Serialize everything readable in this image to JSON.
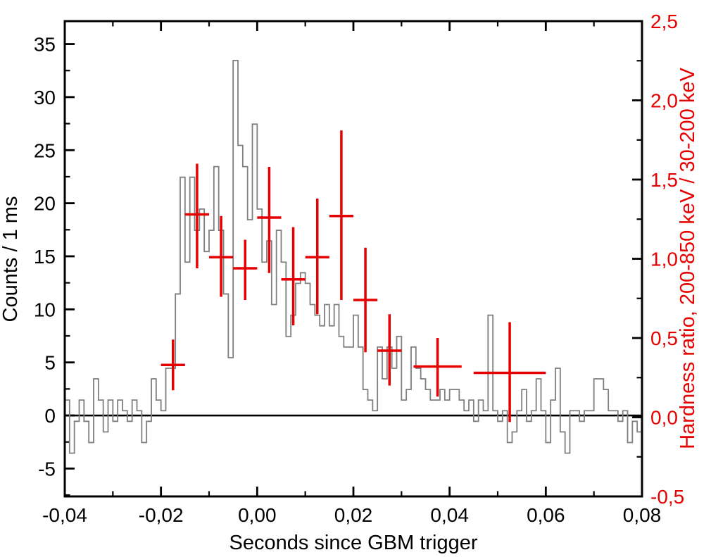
{
  "colors": {
    "background": "#ffffff",
    "histogram_line": "#7f7f7f",
    "hardness_red": "#e60000",
    "axis_black": "#000000"
  },
  "chart_data": {
    "type": "line",
    "title": "",
    "xlabel": "Seconds since GBM trigger",
    "ylabel_left": "Counts / 1 ms",
    "ylabel_right": "Hardness ratio, 200-850 keV / 30-200 keV",
    "x_range": [
      -0.04,
      0.08
    ],
    "y_left_range": [
      -7.63,
      37.16
    ],
    "y_right_range": [
      -0.5,
      2.5
    ],
    "grid": false,
    "legend": "none",
    "zero_line_counts": 0,
    "x_ticks": {
      "values": [
        -0.04,
        -0.02,
        0.0,
        0.02,
        0.04,
        0.06,
        0.08
      ],
      "labels": [
        "-0,04",
        "-0,02",
        "0,00",
        "0,02",
        "0,04",
        "0,06",
        "0,08"
      ],
      "minor_step": 0.01
    },
    "y_left_ticks": {
      "values": [
        -5,
        0,
        5,
        10,
        15,
        20,
        25,
        30,
        35
      ],
      "labels": [
        "-5",
        "0",
        "5",
        "10",
        "15",
        "20",
        "25",
        "30",
        "35"
      ],
      "minor_step": 2.5
    },
    "y_right_ticks": {
      "values": [
        -0.5,
        0.0,
        0.5,
        1.0,
        1.5,
        2.0,
        2.5
      ],
      "labels": [
        "-0,5",
        "0,0",
        "0,5",
        "1,0",
        "1,5",
        "2,0",
        "2,5"
      ],
      "minor_step": 0.25
    },
    "series": [
      {
        "name": "counts-histogram",
        "style": "step",
        "axis": "left",
        "bin_start_s": -0.04,
        "bin_width_s": 0.001,
        "values": [
          1.45,
          -3.55,
          -0.55,
          1.45,
          -0.55,
          -2.55,
          3.45,
          1.45,
          -1.55,
          1.45,
          -0.55,
          1.45,
          0.45,
          -0.55,
          1.45,
          0.45,
          -2.55,
          -0.55,
          3.45,
          1.45,
          0.45,
          4.45,
          4.45,
          11.45,
          22.45,
          14.45,
          22.45,
          17.45,
          19.45,
          15.45,
          17.45,
          23.45,
          17.45,
          11.45,
          5.45,
          33.45,
          25.45,
          23.45,
          18.45,
          27.45,
          19.45,
          14.45,
          16.45,
          10.45,
          17.45,
          14.45,
          7.45,
          9.45,
          12.45,
          13.45,
          12.45,
          10.45,
          9.45,
          8.45,
          10.45,
          8.45,
          10.45,
          7.45,
          6.45,
          6.45,
          9.45,
          6.45,
          2.45,
          1.45,
          0.45,
          6.45,
          3.45,
          6.45,
          4.45,
          7.45,
          1.45,
          2.45,
          6.45,
          4.45,
          3.45,
          2.45,
          1.45,
          1.45,
          2.45,
          1.45,
          2.45,
          2.45,
          1.45,
          0.45,
          1.45,
          -0.55,
          1.45,
          0.45,
          9.45,
          0.45,
          -0.55,
          0.45,
          -2.55,
          -1.55,
          0.45,
          2.45,
          -0.55,
          0.45,
          3.45,
          0.45,
          -2.55,
          1.45,
          4.45,
          -1.55,
          -3.55,
          0.45,
          0.45,
          -0.55,
          0.45,
          0.45,
          3.45,
          3.45,
          2.45,
          0.45,
          0.45,
          -0.55,
          0.45,
          -2.55,
          -0.55,
          -1.55
        ]
      },
      {
        "name": "hardness-ratio",
        "style": "errorbar-cross",
        "axis": "right",
        "points": [
          {
            "t": -0.0175,
            "t_lo": -0.02,
            "t_hi": -0.015,
            "hr": 0.33,
            "err_up": 0.16,
            "err_dn": 0.16
          },
          {
            "t": -0.0125,
            "t_lo": -0.015,
            "t_hi": -0.01,
            "hr": 1.28,
            "err_up": 0.32,
            "err_dn": 0.34
          },
          {
            "t": -0.0075,
            "t_lo": -0.01,
            "t_hi": -0.005,
            "hr": 1.01,
            "err_up": 0.26,
            "err_dn": 0.25
          },
          {
            "t": -0.0025,
            "t_lo": -0.005,
            "t_hi": 0.0,
            "hr": 0.94,
            "err_up": 0.18,
            "err_dn": 0.2
          },
          {
            "t": 0.0025,
            "t_lo": 0.0,
            "t_hi": 0.005,
            "hr": 1.26,
            "err_up": 0.32,
            "err_dn": 0.35
          },
          {
            "t": 0.0075,
            "t_lo": 0.005,
            "t_hi": 0.01,
            "hr": 0.87,
            "err_up": 0.33,
            "err_dn": 0.29
          },
          {
            "t": 0.0125,
            "t_lo": 0.01,
            "t_hi": 0.015,
            "hr": 1.01,
            "err_up": 0.37,
            "err_dn": 0.36
          },
          {
            "t": 0.0175,
            "t_lo": 0.015,
            "t_hi": 0.02,
            "hr": 1.27,
            "err_up": 0.54,
            "err_dn": 0.53
          },
          {
            "t": 0.0225,
            "t_lo": 0.02,
            "t_hi": 0.025,
            "hr": 0.74,
            "err_up": 0.33,
            "err_dn": 0.33
          },
          {
            "t": 0.0275,
            "t_lo": 0.025,
            "t_hi": 0.03,
            "hr": 0.42,
            "err_up": 0.23,
            "err_dn": 0.22
          },
          {
            "t": 0.0375,
            "t_lo": 0.0325,
            "t_hi": 0.0425,
            "hr": 0.32,
            "err_up": 0.18,
            "err_dn": 0.19
          },
          {
            "t": 0.0525,
            "t_lo": 0.045,
            "t_hi": 0.06,
            "hr": 0.28,
            "err_up": 0.32,
            "err_dn": 0.31
          }
        ]
      }
    ]
  }
}
